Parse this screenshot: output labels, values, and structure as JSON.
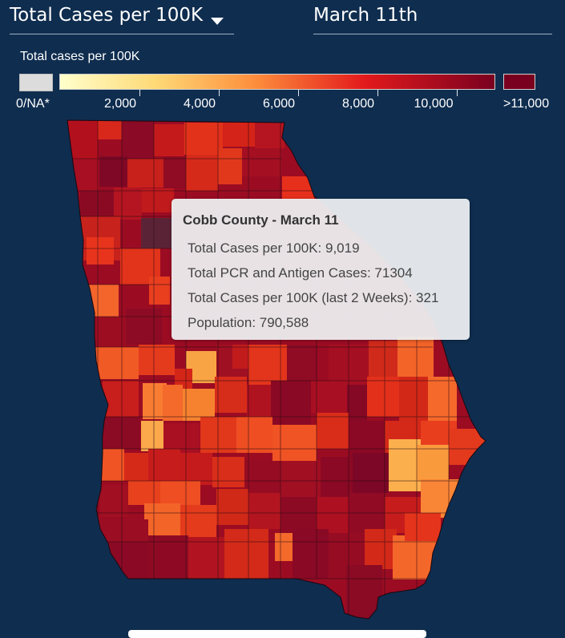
{
  "controls": {
    "metric_label": "Total Cases per 100K",
    "date_label": "March 11th"
  },
  "legend": {
    "title": "Total cases per 100K",
    "na_label": "0/NA*",
    "max_label": ">11,000",
    "ticks": [
      "2,000",
      "4,000",
      "6,000",
      "8,000",
      "10,000"
    ],
    "tick_values": [
      2000,
      4000,
      6000,
      8000,
      10000
    ],
    "domain": [
      0,
      11000
    ],
    "colors": {
      "na": "#dcdcdc",
      "low": "#ffffcc",
      "mid1": "#fed976",
      "mid2": "#fd8d3c",
      "mid3": "#e31a1c",
      "high": "#7a0020",
      "highlight": "#5b2436"
    }
  },
  "tooltip": {
    "title": "Cobb County - March 11",
    "rows": [
      "Total Cases per 100K: 9,019",
      "Total PCR and Antigen Cases: 71304",
      "Total Cases per 100K (last 2 Weeks): 321",
      "Population: 790,588"
    ]
  }
}
